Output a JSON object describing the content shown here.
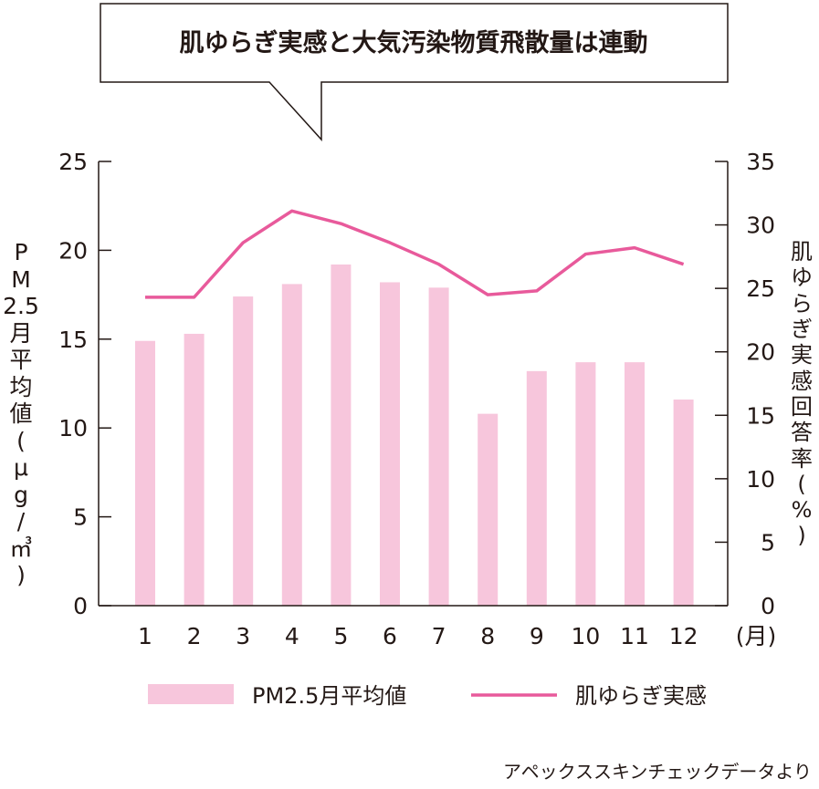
{
  "chart_data": {
    "type": "bar",
    "title": "肌ゆらぎ実感と大気汚染物質飛散量は連動",
    "categories": [
      "1",
      "2",
      "3",
      "4",
      "5",
      "6",
      "7",
      "8",
      "9",
      "10",
      "11",
      "12"
    ],
    "x_unit": "(月)",
    "y_left": {
      "label": "PM2.5月平均値(μg/㎥)",
      "range": [
        0,
        25
      ],
      "ticks": [
        0,
        5,
        10,
        15,
        20,
        25
      ]
    },
    "y_right": {
      "label": "肌ゆらぎ実感回答率(%)",
      "range": [
        0,
        35
      ],
      "ticks": [
        0,
        5,
        10,
        15,
        20,
        25,
        30,
        35
      ]
    },
    "series": [
      {
        "name": "PM2.5月平均値",
        "type": "bar",
        "axis": "left",
        "color": "#f7c6dc",
        "values": [
          14.9,
          15.3,
          17.4,
          18.1,
          19.2,
          18.2,
          17.9,
          10.8,
          13.2,
          13.7,
          13.7,
          11.6
        ]
      },
      {
        "name": "肌ゆらぎ実感",
        "type": "line",
        "axis": "right",
        "color": "#e85a9b",
        "values": [
          24.3,
          24.3,
          28.6,
          31.1,
          30.1,
          28.6,
          26.9,
          24.5,
          24.8,
          27.7,
          28.2,
          26.9
        ]
      }
    ],
    "grid": false,
    "legend": "bottom"
  },
  "source_note": "アペックススキンチェックデータより"
}
